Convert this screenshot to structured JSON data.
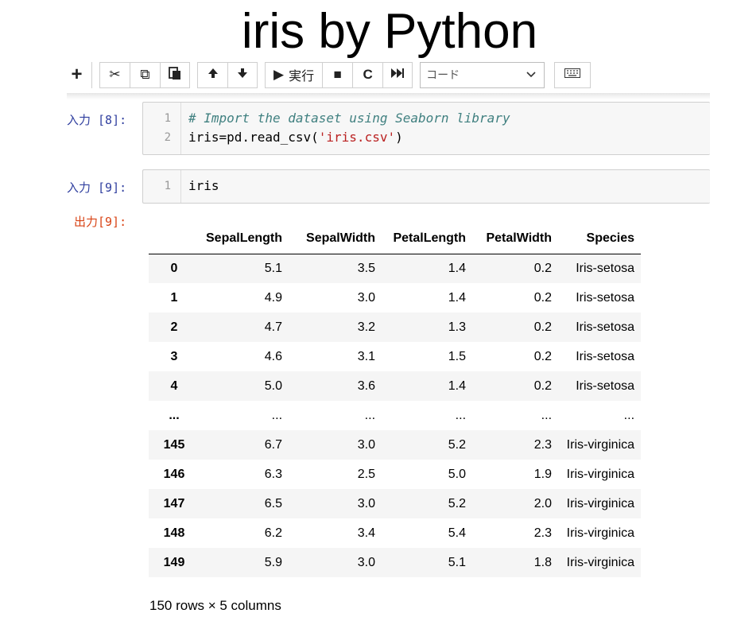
{
  "page_title": "iris by Python",
  "toolbar": {
    "add": "+",
    "cut": "✂",
    "copy": "⧉",
    "paste": "📋",
    "move_up": "🡑",
    "move_down": "🡓",
    "run_glyph": "▶",
    "run_label": "実行",
    "stop": "■",
    "restart": "C",
    "run_all": "⏩",
    "cell_type": "コード",
    "keyboard": "⌨"
  },
  "cells": [
    {
      "prompt": "入力 [8]:",
      "lines": [
        {
          "no": "1",
          "comment": "# Import the dataset using Seaborn library"
        },
        {
          "no": "2",
          "pre": "iris=pd.read_csv(",
          "str": "'iris.csv'",
          "post": ")"
        }
      ]
    },
    {
      "prompt": "入力 [9]:",
      "lines": [
        {
          "no": "1",
          "pre": "iris"
        }
      ]
    }
  ],
  "output_prompt": "出力[9]:",
  "table": {
    "columns": [
      "",
      "SepalLength",
      "SepalWidth",
      "PetalLength",
      "PetalWidth",
      "Species"
    ],
    "rows": [
      [
        "0",
        "5.1",
        "3.5",
        "1.4",
        "0.2",
        "Iris-setosa"
      ],
      [
        "1",
        "4.9",
        "3.0",
        "1.4",
        "0.2",
        "Iris-setosa"
      ],
      [
        "2",
        "4.7",
        "3.2",
        "1.3",
        "0.2",
        "Iris-setosa"
      ],
      [
        "3",
        "4.6",
        "3.1",
        "1.5",
        "0.2",
        "Iris-setosa"
      ],
      [
        "4",
        "5.0",
        "3.6",
        "1.4",
        "0.2",
        "Iris-setosa"
      ],
      [
        "...",
        "...",
        "...",
        "...",
        "...",
        "..."
      ],
      [
        "145",
        "6.7",
        "3.0",
        "5.2",
        "2.3",
        "Iris-virginica"
      ],
      [
        "146",
        "6.3",
        "2.5",
        "5.0",
        "1.9",
        "Iris-virginica"
      ],
      [
        "147",
        "6.5",
        "3.0",
        "5.2",
        "2.0",
        "Iris-virginica"
      ],
      [
        "148",
        "6.2",
        "3.4",
        "5.4",
        "2.3",
        "Iris-virginica"
      ],
      [
        "149",
        "5.9",
        "3.0",
        "5.1",
        "1.8",
        "Iris-virginica"
      ]
    ],
    "summary": "150 rows × 5 columns"
  }
}
